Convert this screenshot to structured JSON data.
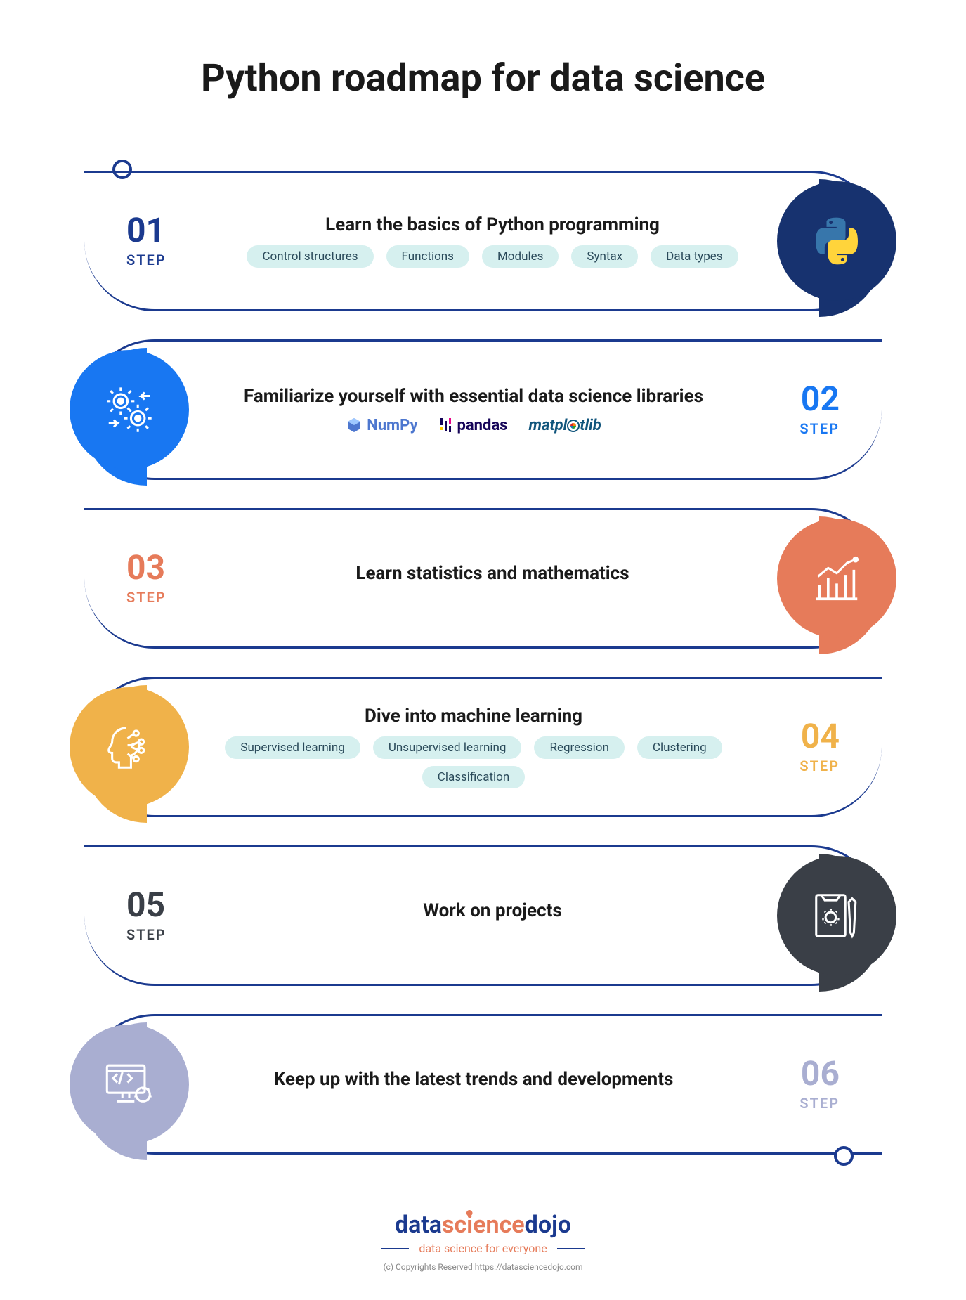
{
  "title": "Python roadmap for data science",
  "step_label": "STEP",
  "border_color": "#1b3a8f",
  "tag_bg": "#d6f0ef",
  "steps": [
    {
      "num": "01",
      "side": "right",
      "color": "#1b3a8f",
      "bubble_color": "#17326f",
      "icon": "python",
      "heading": "Learn the basics of Python programming",
      "tags": [
        "Control structures",
        "Functions",
        "Modules",
        "Syntax",
        "Data types"
      ]
    },
    {
      "num": "02",
      "side": "left",
      "color": "#1877f2",
      "bubble_color": "#1877f2",
      "icon": "gears",
      "heading": "Familiarize yourself with essential data science libraries",
      "libs": [
        "NumPy",
        "pandas",
        "matplotlib"
      ]
    },
    {
      "num": "03",
      "side": "right",
      "color": "#e67b5a",
      "bubble_color": "#e67b5a",
      "icon": "chart",
      "heading": "Learn statistics and mathematics"
    },
    {
      "num": "04",
      "side": "left",
      "color": "#f0b24a",
      "bubble_color": "#f0b24a",
      "icon": "ai-head",
      "heading": "Dive into machine learning",
      "tags": [
        "Supervised learning",
        "Unsupervised learning",
        "Regression",
        "Clustering",
        "Classification"
      ]
    },
    {
      "num": "05",
      "side": "right",
      "color": "#3a3f47",
      "bubble_color": "#3a3f47",
      "icon": "project",
      "heading": "Work on projects"
    },
    {
      "num": "06",
      "side": "left",
      "color": "#a9aed1",
      "bubble_color": "#a9aed1",
      "icon": "code-screen",
      "heading": "Keep up with the latest trends and developments"
    }
  ],
  "footer": {
    "brand_parts": [
      "data",
      "science",
      "dojo"
    ],
    "brand_accent_char": "i",
    "tagline": "data science for everyone",
    "copyright": "(c) Copyrights Reserved  https://datasciencedojo.com"
  }
}
